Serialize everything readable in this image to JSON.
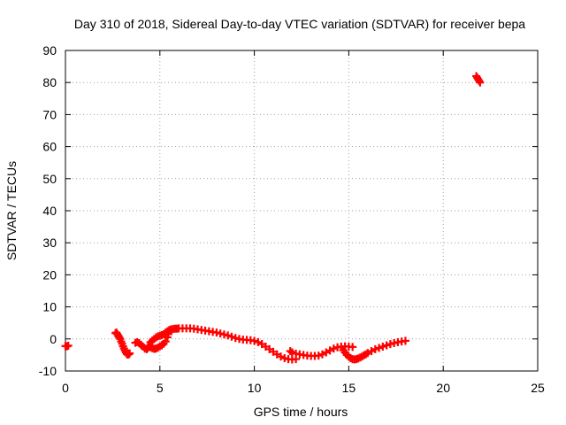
{
  "chart_data": {
    "type": "scatter",
    "title": "Day 310 of 2018, Sidereal Day-to-day VTEC variation (SDTVAR) for receiver bepa",
    "xlabel": "GPS time / hours",
    "ylabel": "SDTVAR / TECUs",
    "xlim": [
      0,
      25
    ],
    "ylim": [
      -10,
      90
    ],
    "xticks": [
      0,
      5,
      10,
      15,
      20,
      25
    ],
    "yticks": [
      -10,
      0,
      10,
      20,
      30,
      40,
      50,
      60,
      70,
      80,
      90
    ],
    "grid": true,
    "marker": "plus",
    "color": "#ff0000",
    "series": [
      {
        "name": "SDTVAR",
        "x": [
          0.0,
          0.08,
          0.15,
          2.65,
          2.7,
          2.75,
          2.8,
          2.85,
          2.9,
          2.95,
          3.0,
          3.05,
          3.1,
          3.15,
          3.2,
          3.25,
          3.3,
          3.35,
          3.4,
          3.7,
          3.8,
          3.9,
          4.0,
          4.1,
          4.2,
          4.3,
          4.35,
          4.4,
          4.45,
          4.5,
          4.6,
          4.7,
          4.8,
          4.9,
          5.0,
          5.1,
          5.2,
          5.3,
          5.4,
          5.45,
          5.5,
          4.5,
          4.6,
          4.7,
          4.8,
          4.9,
          5.0,
          5.1,
          5.2,
          5.3,
          5.4,
          5.5,
          5.6,
          5.7,
          5.8,
          5.9,
          6.0,
          6.2,
          6.4,
          6.6,
          6.8,
          7.0,
          7.2,
          7.4,
          7.6,
          7.8,
          8.0,
          8.2,
          8.4,
          8.6,
          8.8,
          9.0,
          9.2,
          9.4,
          9.6,
          9.8,
          10.0,
          10.2,
          10.4,
          10.6,
          10.8,
          11.0,
          11.2,
          11.4,
          11.6,
          11.8,
          12.0,
          12.2,
          11.9,
          12.0,
          12.2,
          12.4,
          12.6,
          12.8,
          13.0,
          13.2,
          13.4,
          13.6,
          13.8,
          14.0,
          14.2,
          14.4,
          14.6,
          14.8,
          15.0,
          15.2,
          14.7,
          14.8,
          14.9,
          15.0,
          15.1,
          15.2,
          15.3,
          15.4,
          15.5,
          15.6,
          15.7,
          15.8,
          15.9,
          16.0,
          16.2,
          16.4,
          16.6,
          16.8,
          17.0,
          17.2,
          17.4,
          17.6,
          17.8,
          18.0,
          21.75,
          21.8,
          21.85,
          21.9,
          21.95
        ],
        "y": [
          -2.2,
          -2.3,
          -2.1,
          1.8,
          2.0,
          1.5,
          1.0,
          0.5,
          0.0,
          -0.8,
          -1.5,
          -2.3,
          -3.0,
          -3.6,
          -4.2,
          -4.7,
          -4.9,
          -4.8,
          -4.5,
          -1.2,
          -1.0,
          -1.3,
          -1.8,
          -2.4,
          -3.0,
          -3.2,
          -2.8,
          -2.5,
          -2.2,
          -2.6,
          -2.9,
          -3.1,
          -3.0,
          -2.7,
          -2.3,
          -2.0,
          -1.5,
          -0.8,
          0.5,
          1.5,
          2.5,
          -1.0,
          -0.5,
          0.0,
          0.5,
          0.8,
          1.0,
          1.2,
          1.5,
          2.0,
          2.4,
          2.8,
          3.0,
          3.1,
          3.2,
          3.2,
          3.3,
          3.3,
          3.3,
          3.3,
          3.2,
          3.0,
          2.8,
          2.6,
          2.4,
          2.2,
          2.0,
          1.7,
          1.4,
          1.1,
          0.7,
          0.3,
          0.0,
          -0.2,
          -0.3,
          -0.4,
          -0.6,
          -1.0,
          -1.6,
          -2.4,
          -3.2,
          -4.0,
          -4.8,
          -5.5,
          -6.0,
          -6.3,
          -6.4,
          -6.3,
          -3.8,
          -4.2,
          -4.6,
          -4.8,
          -5.0,
          -5.2,
          -5.3,
          -5.3,
          -5.2,
          -4.8,
          -4.2,
          -3.6,
          -3.0,
          -2.6,
          -2.4,
          -2.3,
          -2.4,
          -2.5,
          -3.5,
          -4.2,
          -5.0,
          -5.6,
          -6.0,
          -6.3,
          -6.4,
          -6.3,
          -6.1,
          -5.8,
          -5.5,
          -5.1,
          -4.8,
          -4.4,
          -3.8,
          -3.2,
          -2.8,
          -2.4,
          -2.0,
          -1.6,
          -1.3,
          -1.0,
          -0.8,
          -0.6,
          82.0,
          81.5,
          81.0,
          80.5,
          80.0
        ]
      }
    ]
  }
}
